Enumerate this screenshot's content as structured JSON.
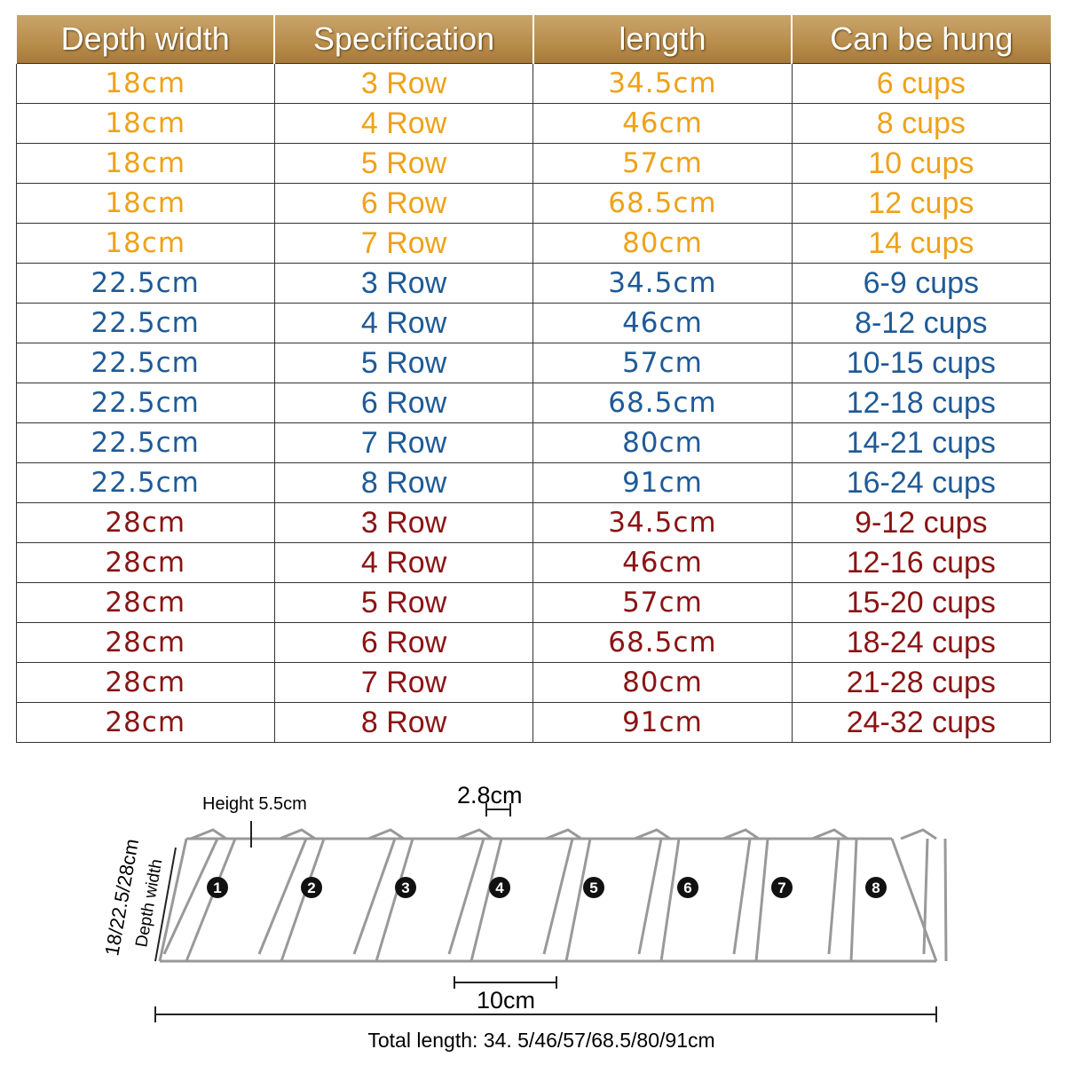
{
  "table": {
    "header": [
      "Depth width",
      "Specification",
      "length",
      "Can be hung"
    ],
    "groups": [
      {
        "color": "#eea21a",
        "rows": [
          [
            "18cm",
            "3 Row",
            "34.5cm",
            "6 cups"
          ],
          [
            "18cm",
            "4 Row",
            "46cm",
            "8 cups"
          ],
          [
            "18cm",
            "5 Row",
            "57cm",
            "10 cups"
          ],
          [
            "18cm",
            "6 Row",
            "68.5cm",
            "12 cups"
          ],
          [
            "18cm",
            "7 Row",
            "80cm",
            "14 cups"
          ]
        ]
      },
      {
        "color": "#1f5a96",
        "rows": [
          [
            "22.5cm",
            "3 Row",
            "34.5cm",
            "6-9 cups"
          ],
          [
            "22.5cm",
            "4 Row",
            "46cm",
            "8-12 cups"
          ],
          [
            "22.5cm",
            "5 Row",
            "57cm",
            "10-15 cups"
          ],
          [
            "22.5cm",
            "6 Row",
            "68.5cm",
            "12-18 cups"
          ],
          [
            "22.5cm",
            "7 Row",
            "80cm",
            "14-21 cups"
          ],
          [
            "22.5cm",
            "8 Row",
            "91cm",
            "16-24 cups"
          ]
        ]
      },
      {
        "color": "#8a1414",
        "rows": [
          [
            "28cm",
            "3 Row",
            "34.5cm",
            "9-12 cups"
          ],
          [
            "28cm",
            "4 Row",
            "46cm",
            "12-16 cups"
          ],
          [
            "28cm",
            "5 Row",
            "57cm",
            "15-20 cups"
          ],
          [
            "28cm",
            "6 Row",
            "68.5cm",
            "18-24 cups"
          ],
          [
            "28cm",
            "7 Row",
            "80cm",
            "21-28 cups"
          ],
          [
            "28cm",
            "8 Row",
            "91cm",
            "24-32 cups"
          ]
        ]
      }
    ]
  },
  "diagram": {
    "height": "Height 5.5cm",
    "spacing": "2.8cm",
    "depth": "18/22.5/28cm",
    "depth_label": "Depth width",
    "pitch": "10cm",
    "total": "Total length: 34. 5/46/57/68.5/80/91cm",
    "hooks": [
      "1",
      "2",
      "3",
      "4",
      "5",
      "6",
      "7",
      "8"
    ]
  }
}
